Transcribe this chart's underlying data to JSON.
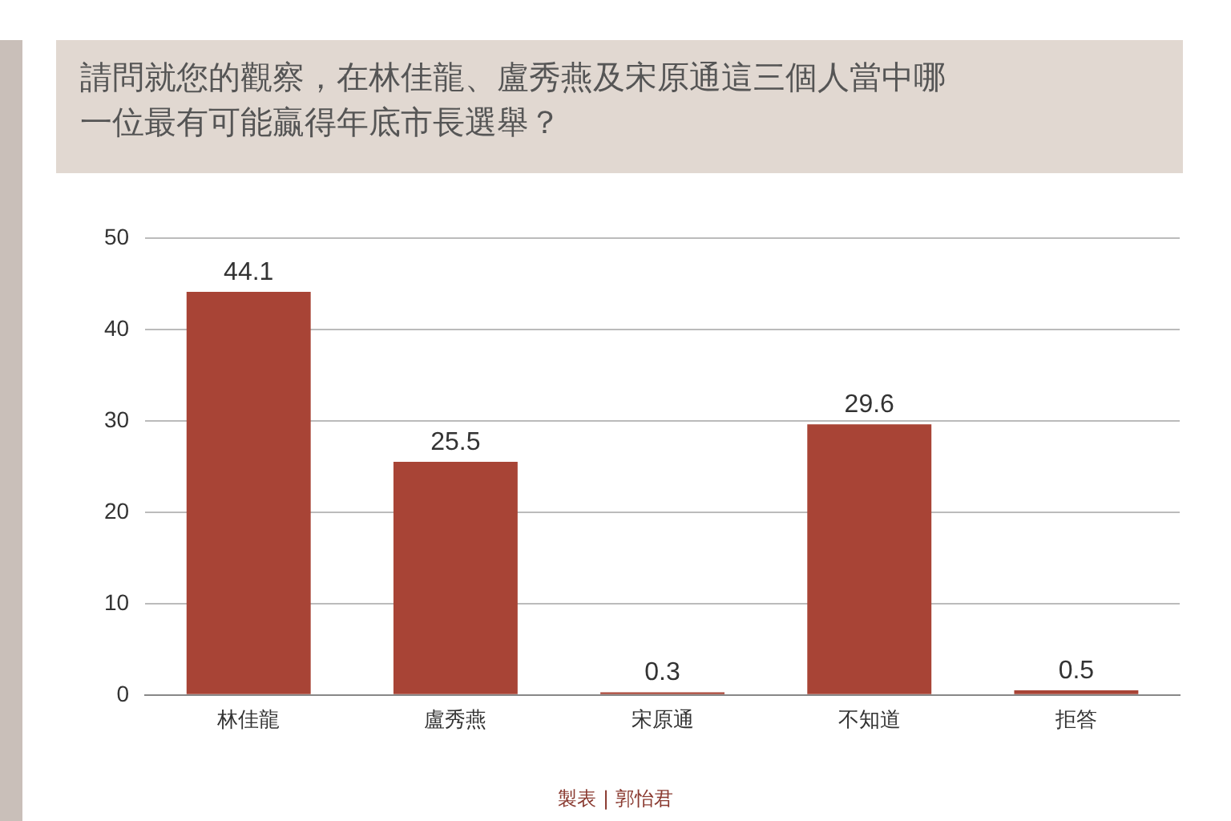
{
  "chart_data": {
    "type": "bar",
    "title": "請問就您的觀察，在林佳龍、盧秀燕及宋原通這三個人當中哪一位最有可能贏得年底市長選舉？",
    "categories": [
      "林佳龍",
      "盧秀燕",
      "宋原通",
      "不知道",
      "拒答"
    ],
    "values": [
      44.1,
      25.5,
      0.3,
      29.6,
      0.5
    ],
    "color": "#a84436",
    "ylim": [
      0,
      50
    ],
    "yticks": [
      0,
      10,
      20,
      30,
      40,
      50
    ],
    "grid": "y",
    "data_labels": true,
    "legend": false,
    "annotations": [
      "製表 | 郭怡君"
    ]
  }
}
